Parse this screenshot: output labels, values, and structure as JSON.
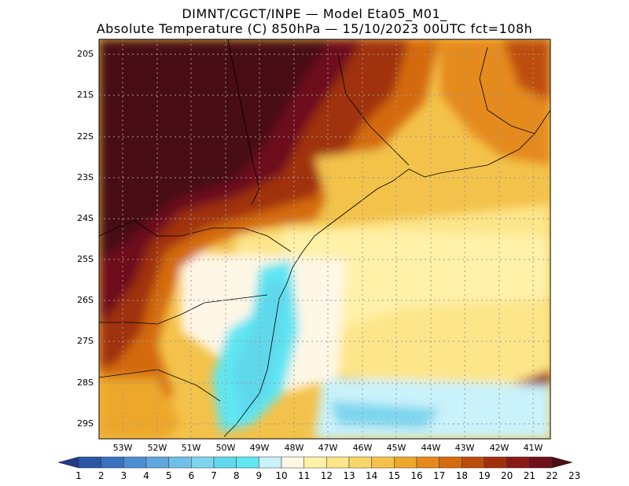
{
  "title": {
    "line1": "DIMNT/CGCT/INPE —  Model Eta05_M01_",
    "line2": "Absolute Temperature (C) 850hPa —  15/10/2023 00UTC fct=108h"
  },
  "axes": {
    "lat_labels": [
      "20S",
      "21S",
      "22S",
      "23S",
      "24S",
      "25S",
      "26S",
      "27S",
      "28S",
      "29S"
    ],
    "lon_labels": [
      "53W",
      "52W",
      "51W",
      "50W",
      "49W",
      "48W",
      "47W",
      "46W",
      "45W",
      "44W",
      "43W",
      "42W",
      "41W"
    ]
  },
  "colorbar": {
    "labels": [
      "1",
      "2",
      "3",
      "4",
      "5",
      "6",
      "7",
      "8",
      "9",
      "10",
      "11",
      "12",
      "13",
      "14",
      "15",
      "16",
      "17",
      "18",
      "19",
      "20",
      "21",
      "22",
      "23"
    ],
    "colors": [
      "#1f3a8a",
      "#2b56a8",
      "#3a72c0",
      "#4d8fd2",
      "#5fa8df",
      "#6fc0e8",
      "#7dd6ee",
      "#5fd8ec",
      "#5ee6f2",
      "#c9f2fa",
      "#fff7e6",
      "#fff1a8",
      "#fde68a",
      "#f8d668",
      "#f3c24a",
      "#eda72a",
      "#e58a1a",
      "#d46b10",
      "#bd4d0c",
      "#a0300c",
      "#8a1a16",
      "#6e0f1a",
      "#4a1014"
    ]
  },
  "chart_data": {
    "type": "heatmap",
    "variable": "Absolute Temperature (C) 850hPa",
    "units": "C",
    "lat_range": [
      -29.5,
      -19.5
    ],
    "lon_range": [
      -53.5,
      -40.5
    ],
    "color_levels": [
      1,
      2,
      3,
      4,
      5,
      6,
      7,
      8,
      9,
      10,
      11,
      12,
      13,
      14,
      15,
      16,
      17,
      18,
      19,
      20,
      21,
      22,
      23
    ]
  }
}
